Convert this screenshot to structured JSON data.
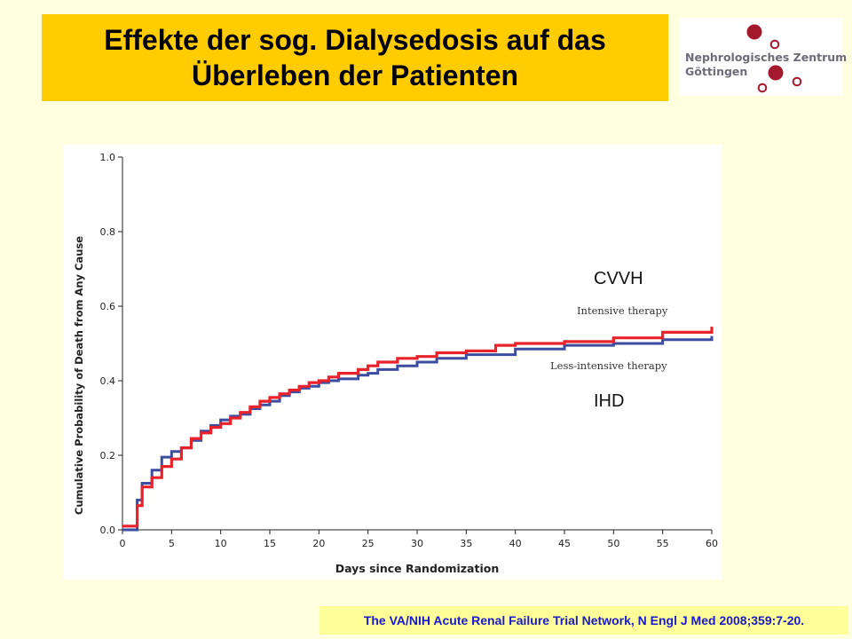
{
  "header": {
    "title_line1": "Effekte der sog. Dialysedosis auf das",
    "title_line2": "Überleben der Patienten"
  },
  "logo": {
    "line1": "Nephrologisches Zentrum",
    "line2": "Göttingen",
    "dot_color": "#a5192e"
  },
  "citation": "The VA/NIH Acute Renal Failure Trial Network, N Engl J Med 2008;359:7-20.",
  "annotations": {
    "cvvh": "CVVH",
    "ihd": "IHD"
  },
  "chart_data": {
    "type": "line",
    "step": true,
    "xlabel": "Days since Randomization",
    "ylabel": "Cumulative Probability of Death from Any Cause",
    "xlim": [
      0,
      60
    ],
    "ylim": [
      0,
      1.0
    ],
    "xticks": [
      0,
      5,
      10,
      15,
      20,
      25,
      30,
      35,
      40,
      45,
      50,
      55,
      60
    ],
    "yticks": [
      0.0,
      0.2,
      0.4,
      0.6,
      0.8,
      1.0
    ],
    "ytick_labels": [
      "0.0",
      "0.2",
      "0.4",
      "0.6",
      "0.8",
      "1.0"
    ],
    "grid": false,
    "series": [
      {
        "name": "Intensive therapy",
        "color": "#e8232b",
        "x": [
          0,
          1,
          1.5,
          2,
          3,
          4,
          5,
          6,
          7,
          8,
          9,
          10,
          11,
          12,
          13,
          14,
          15,
          16,
          17,
          18,
          19,
          20,
          21,
          22,
          24,
          25,
          26,
          28,
          30,
          32,
          35,
          38,
          40,
          45,
          50,
          55,
          60
        ],
        "y": [
          0.01,
          0.01,
          0.065,
          0.115,
          0.14,
          0.17,
          0.19,
          0.22,
          0.245,
          0.26,
          0.275,
          0.285,
          0.3,
          0.315,
          0.33,
          0.345,
          0.355,
          0.365,
          0.375,
          0.385,
          0.395,
          0.4,
          0.41,
          0.42,
          0.43,
          0.44,
          0.45,
          0.46,
          0.465,
          0.475,
          0.48,
          0.495,
          0.5,
          0.505,
          0.515,
          0.53,
          0.545
        ]
      },
      {
        "name": "Less-intensive therapy",
        "color": "#3b4da0",
        "x": [
          0,
          1,
          1.5,
          2,
          3,
          4,
          5,
          6,
          7,
          8,
          9,
          10,
          11,
          12,
          13,
          14,
          15,
          16,
          17,
          18,
          19,
          20,
          21,
          22,
          24,
          25,
          26,
          28,
          30,
          32,
          35,
          38,
          40,
          45,
          50,
          55,
          60
        ],
        "y": [
          0.0,
          0.0,
          0.08,
          0.125,
          0.16,
          0.195,
          0.21,
          0.22,
          0.24,
          0.265,
          0.28,
          0.295,
          0.305,
          0.31,
          0.325,
          0.335,
          0.345,
          0.36,
          0.37,
          0.38,
          0.385,
          0.395,
          0.4,
          0.405,
          0.415,
          0.42,
          0.43,
          0.44,
          0.45,
          0.46,
          0.47,
          0.47,
          0.485,
          0.495,
          0.5,
          0.51,
          0.52
        ]
      }
    ]
  }
}
